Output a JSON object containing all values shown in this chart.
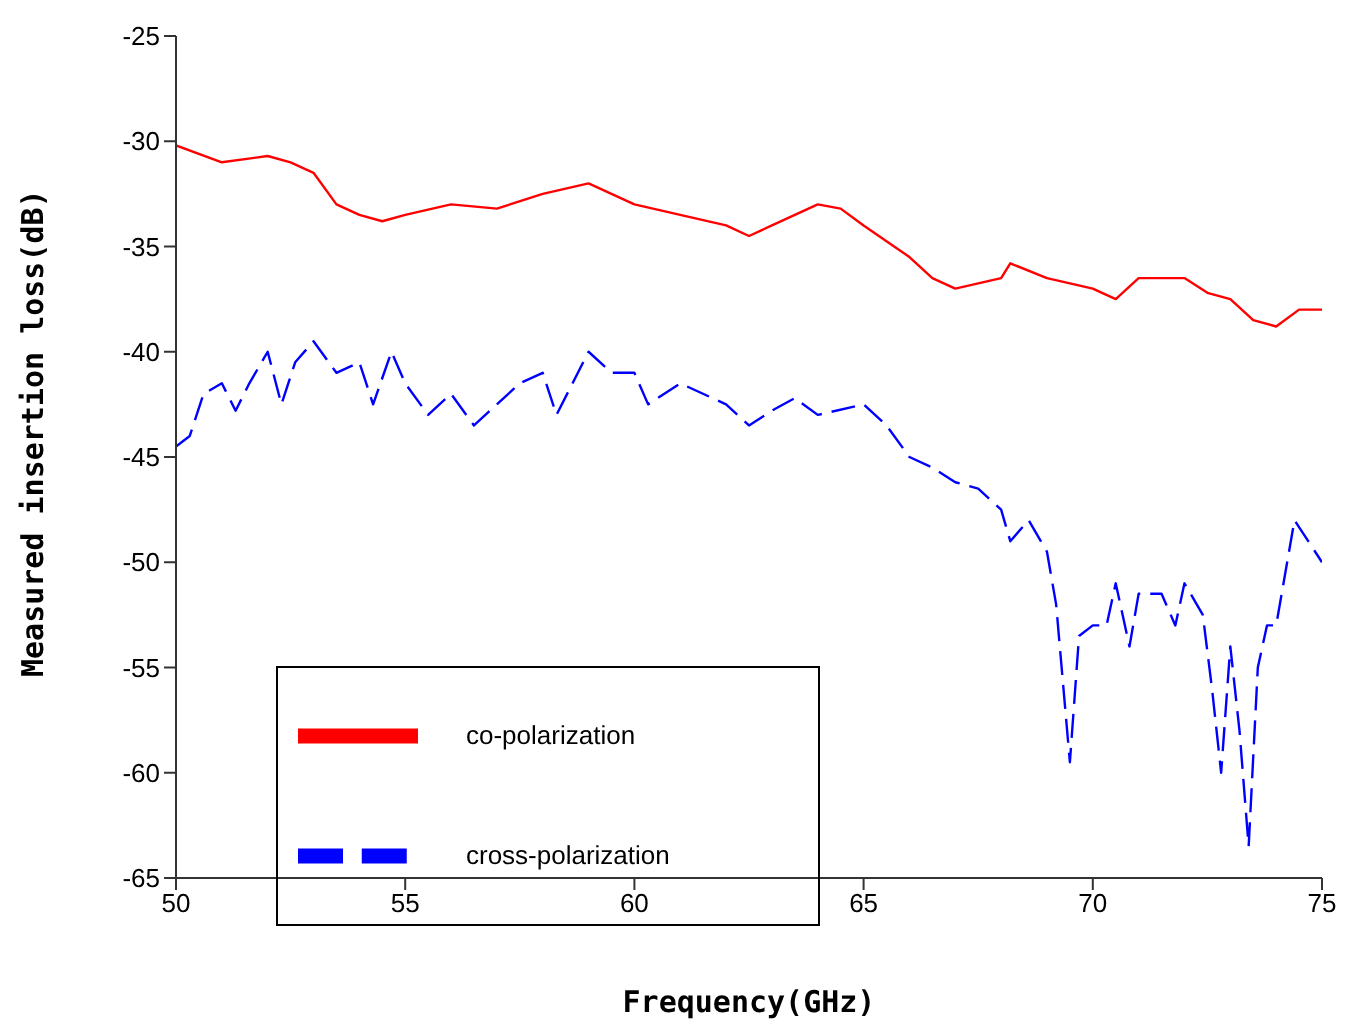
{
  "chart_data": {
    "type": "line",
    "xlabel": "Frequency(GHz)",
    "ylabel": "Measured insertion loss(dB)",
    "xlim": [
      50,
      75
    ],
    "xticks": [
      50,
      55,
      60,
      65,
      70,
      75
    ],
    "ylim": [
      -65,
      -25
    ],
    "yticks": [
      -65,
      -60,
      -55,
      -50,
      -45,
      -40,
      -35,
      -30,
      -25
    ],
    "grid": false,
    "legend": "bottom left",
    "marker": "none",
    "series": [
      {
        "name": "co-polarization",
        "color": "#ff0000",
        "line_style": "solid",
        "x": [
          50,
          51,
          52,
          52.5,
          53,
          53.5,
          54,
          54.5,
          55,
          56,
          57,
          58,
          59,
          60,
          61,
          62,
          62.5,
          63,
          64,
          64.5,
          65,
          66,
          66.5,
          67,
          68,
          68.2,
          69,
          70,
          70.5,
          71,
          72,
          72.5,
          73,
          73.5,
          74,
          74.5,
          75
        ],
        "values": [
          -30.2,
          -31,
          -30.7,
          -31,
          -31.5,
          -33,
          -33.5,
          -33.8,
          -33.5,
          -33,
          -33.2,
          -32.5,
          -32,
          -33,
          -33.5,
          -34,
          -34.5,
          -34,
          -33,
          -33.2,
          -34,
          -35.5,
          -36.5,
          -37,
          -36.5,
          -35.8,
          -36.5,
          -37,
          -37.5,
          -36.5,
          -36.5,
          -37.2,
          -37.5,
          -38.5,
          -38.8,
          -38,
          -38
        ]
      },
      {
        "name": "cross-polarization",
        "color": "#0000ff",
        "line_style": "dashed",
        "x": [
          50,
          50.3,
          50.6,
          51,
          51.3,
          51.6,
          52,
          52.3,
          52.6,
          53,
          53.5,
          54,
          54.3,
          54.7,
          55,
          55.5,
          56,
          56.5,
          57,
          57.5,
          58,
          58.3,
          59,
          59.5,
          60,
          60.3,
          61,
          62,
          62.5,
          63,
          63.5,
          64,
          65,
          65.5,
          66,
          66.5,
          67,
          67.5,
          68,
          68.2,
          68.6,
          69,
          69.2,
          69.5,
          69.7,
          70,
          70.3,
          70.5,
          70.8,
          71,
          71.5,
          71.8,
          72,
          72.4,
          72.6,
          72.8,
          73,
          73.2,
          73.4,
          73.6,
          73.8,
          74,
          74.2,
          74.4,
          74.7,
          75
        ],
        "values": [
          -44.5,
          -44,
          -42,
          -41.5,
          -42.8,
          -41.5,
          -40,
          -42.5,
          -40.5,
          -39.5,
          -41,
          -40.5,
          -42.5,
          -40,
          -41.5,
          -43,
          -42,
          -43.5,
          -42.5,
          -41.5,
          -41,
          -43,
          -40,
          -41,
          -41,
          -42.5,
          -41.5,
          -42.5,
          -43.5,
          -42.8,
          -42.2,
          -43,
          -42.5,
          -43.5,
          -45,
          -45.5,
          -46.2,
          -46.5,
          -47.5,
          -49,
          -48,
          -49.5,
          -52,
          -59.5,
          -53.5,
          -53,
          -53,
          -51,
          -54,
          -51.5,
          -51.5,
          -53,
          -51,
          -52.5,
          -56,
          -60,
          -54,
          -58,
          -63.5,
          -55,
          -53,
          -53,
          -50.5,
          -48,
          -49,
          -50
        ]
      }
    ]
  }
}
